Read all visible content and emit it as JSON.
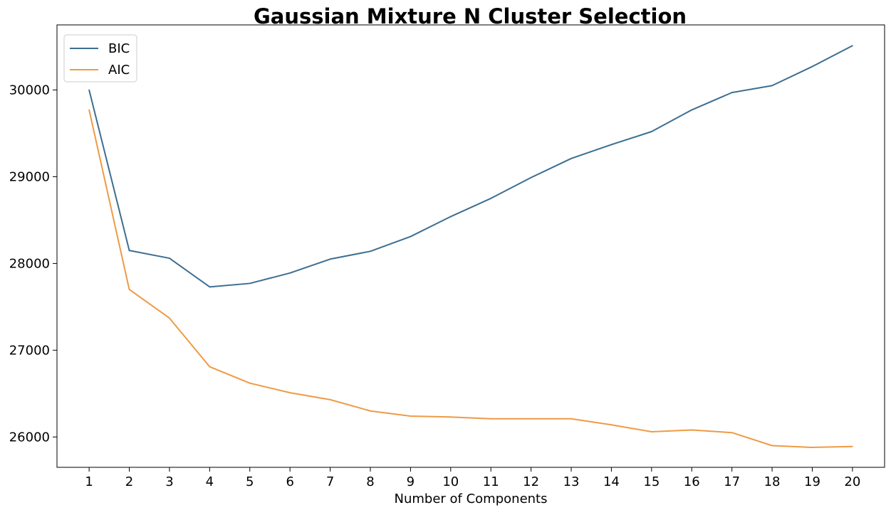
{
  "chart_data": {
    "type": "line",
    "title": "Gaussian Mixture N Cluster Selection",
    "xlabel": "Number of Components",
    "ylabel": "",
    "x": [
      1,
      2,
      3,
      4,
      5,
      6,
      7,
      8,
      9,
      10,
      11,
      12,
      13,
      14,
      15,
      16,
      17,
      18,
      19,
      20
    ],
    "x_ticks": [
      "1",
      "2",
      "3",
      "4",
      "5",
      "6",
      "7",
      "8",
      "9",
      "10",
      "11",
      "12",
      "13",
      "14",
      "15",
      "16",
      "17",
      "18",
      "19",
      "20"
    ],
    "y_ticks": [
      26000,
      27000,
      28000,
      29000,
      30000
    ],
    "xlim": [
      0.2,
      20.8
    ],
    "ylim": [
      25650,
      30750
    ],
    "grid": false,
    "legend_position": "top-left",
    "series": [
      {
        "name": "BIC",
        "color": "#3d6e91",
        "values": [
          30000,
          28150,
          28060,
          27730,
          27770,
          27890,
          28050,
          28140,
          28310,
          28540,
          28750,
          28990,
          29210,
          29370,
          29520,
          29770,
          29970,
          30050,
          30270,
          30510
        ]
      },
      {
        "name": "AIC",
        "color": "#ef9a45",
        "values": [
          29770,
          27700,
          27370,
          26810,
          26620,
          26510,
          26430,
          26300,
          26240,
          26230,
          26210,
          26210,
          26210,
          26140,
          26060,
          26080,
          26050,
          25900,
          25880,
          25890
        ]
      }
    ]
  }
}
